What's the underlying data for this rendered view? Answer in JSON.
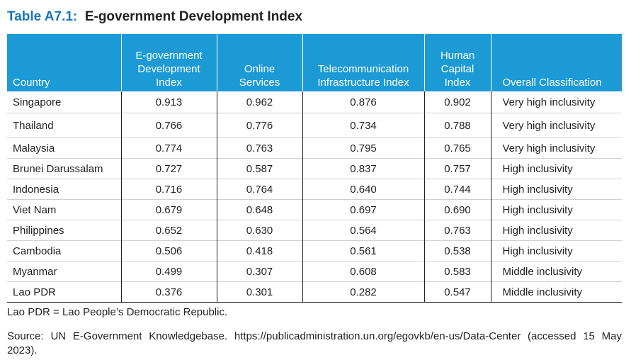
{
  "title": {
    "label": "Table A7.1:",
    "text": "E-government Development Index"
  },
  "table": {
    "headers": [
      [
        "Country"
      ],
      [
        "E-government",
        "Development",
        "Index"
      ],
      [
        "Online",
        "Services"
      ],
      [
        "Telecommunication",
        "Infrastructure Index"
      ],
      [
        "Human",
        "Capital",
        "Index"
      ],
      [
        "Overall Classification"
      ]
    ],
    "rows": [
      [
        "Singapore",
        "0.913",
        "0.962",
        "0.876",
        "0.902",
        "Very high inclusivity"
      ],
      [
        "Thailand",
        "0.766",
        "0.776",
        "0.734",
        "0.788",
        "Very high inclusivity"
      ],
      [
        "Malaysia",
        "0.774",
        "0.763",
        "0.795",
        "0.765",
        "Very high inclusivity"
      ],
      [
        "Brunei Darussalam",
        "0.727",
        "0.587",
        "0.837",
        "0.757",
        "High inclusivity"
      ],
      [
        "Indonesia",
        "0.716",
        "0.764",
        "0.640",
        "0.744",
        "High inclusivity"
      ],
      [
        "Viet Nam",
        "0.679",
        "0.648",
        "0.697",
        "0.690",
        "High inclusivity"
      ],
      [
        "Philippines",
        "0.652",
        "0.630",
        "0.564",
        "0.763",
        "High inclusivity"
      ],
      [
        "Cambodia",
        "0.506",
        "0.418",
        "0.561",
        "0.538",
        "High inclusivity"
      ],
      [
        "Myanmar",
        "0.499",
        "0.307",
        "0.608",
        "0.583",
        "Middle inclusivity"
      ],
      [
        "Lao PDR",
        "0.376",
        "0.301",
        "0.282",
        "0.547",
        "Middle inclusivity"
      ]
    ]
  },
  "note": "Lao PDR = Lao People’s Democratic Republic.",
  "source": "Source: UN E-Government Knowledgebase. https://publicadministration.un.org/egovkb/en-us/Data-Center (accessed 15 May 2023).",
  "colors": {
    "accent": "#1b75bb",
    "header_fill": "#1b9ad6"
  }
}
